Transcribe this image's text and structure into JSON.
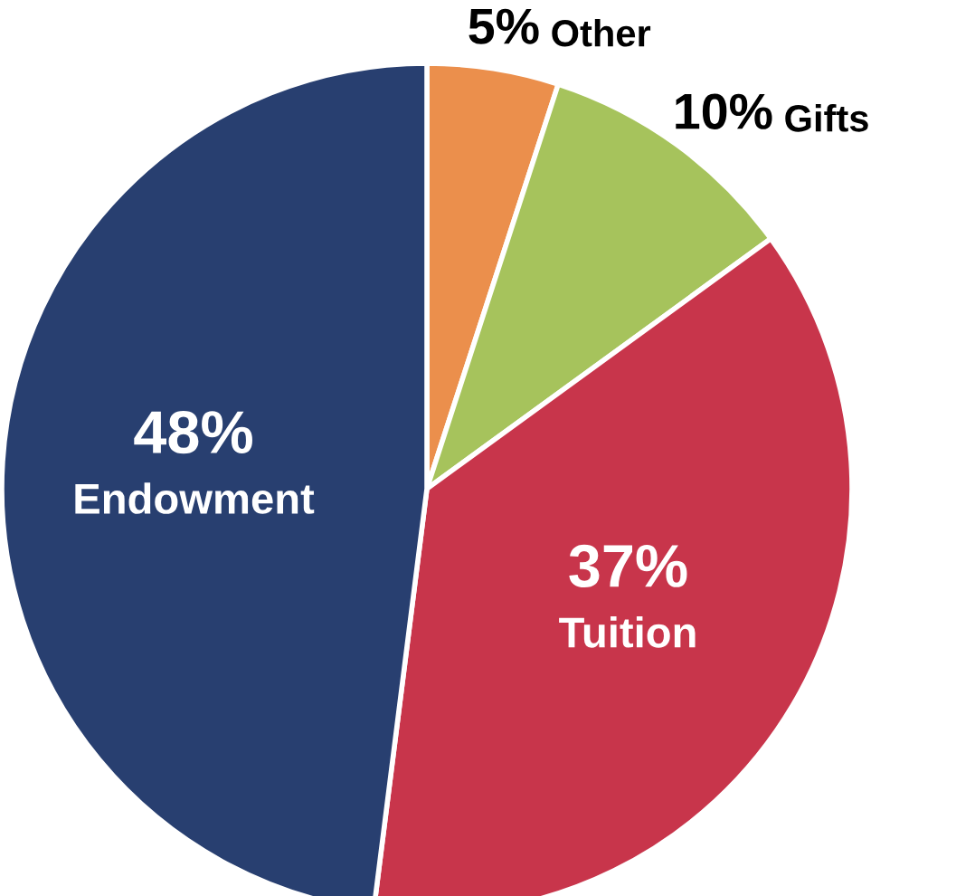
{
  "chart_data": {
    "type": "pie",
    "categories": [
      "Other",
      "Gifts",
      "Tuition",
      "Endowment"
    ],
    "values": [
      5,
      10,
      37,
      48
    ],
    "value_labels": [
      "5%",
      "10%",
      "37%",
      "48%"
    ],
    "colors": [
      "#eb8f4c",
      "#a6c35c",
      "#c8354b",
      "#283f70"
    ],
    "legend": false
  }
}
